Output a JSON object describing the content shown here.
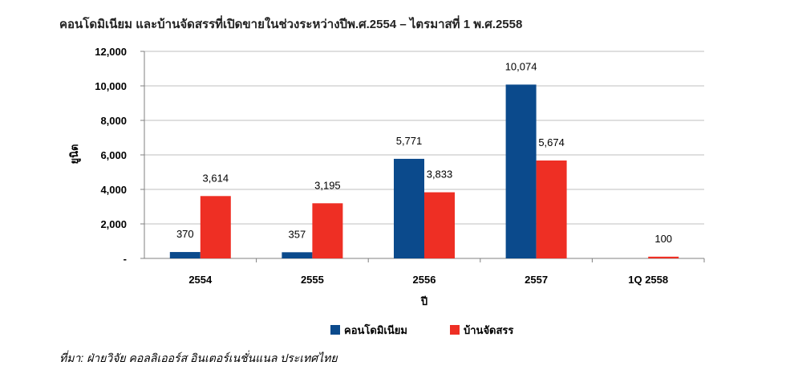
{
  "title": "คอนโดมิเนียม และบ้านจัดสรรที่เปิดขายในช่วงระหว่างปีพ.ศ.2554 – ไตรมาสที่ 1 พ.ศ.2558",
  "source": "ที่มา: ฝ่ายวิจัย คอลลิเออร์ส อินเตอร์เนชั่นแนล ประเทศไทย",
  "colors": {
    "condo": "#0b4a8c",
    "house": "#ee2f24",
    "grid": "#bfbfbf",
    "axis": "#808080"
  },
  "chart_data": {
    "type": "bar",
    "xlabel": "ปี",
    "ylabel": "ยูนิต",
    "ylim": [
      0,
      12000
    ],
    "yticks": [
      0,
      2000,
      4000,
      6000,
      8000,
      10000,
      12000
    ],
    "ytick_labels": [
      "-",
      "2,000",
      "4,000",
      "6,000",
      "8,000",
      "10,000",
      "12,000"
    ],
    "grid": true,
    "legend_position": "bottom",
    "categories": [
      "2554",
      "2555",
      "2556",
      "2557",
      "1Q 2558"
    ],
    "series": [
      {
        "name": "คอนโดมิเนียม",
        "values": [
          370,
          357,
          5771,
          10074,
          null
        ],
        "labels": [
          "370",
          "357",
          "5,771",
          "10,074",
          ""
        ]
      },
      {
        "name": "บ้านจัดสรร",
        "values": [
          3614,
          3195,
          3833,
          5674,
          100
        ],
        "labels": [
          "3,614",
          "3,195",
          "3,833",
          "5,674",
          "100"
        ]
      }
    ]
  }
}
